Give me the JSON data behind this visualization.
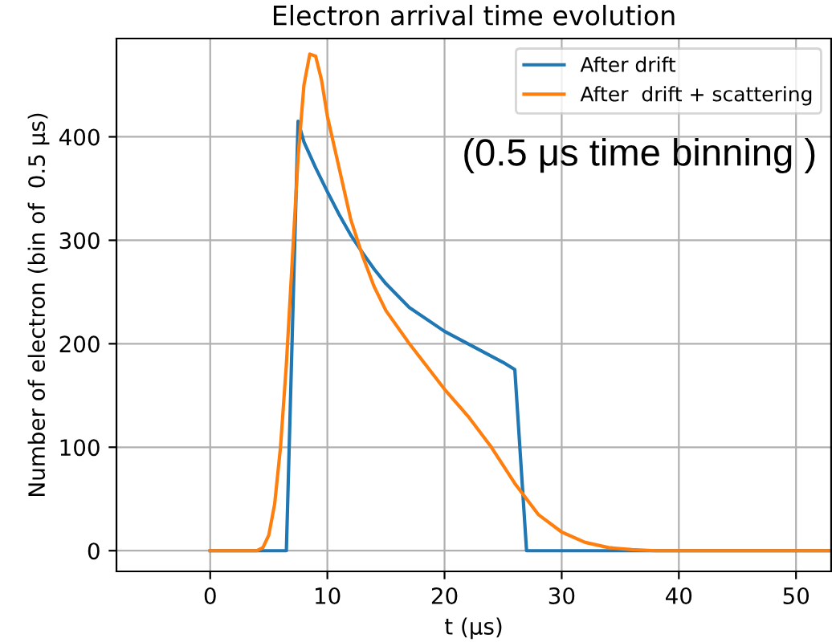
{
  "chart_data": {
    "type": "line",
    "title": "Electron arrival time evolution",
    "xlabel": "t (μs)",
    "ylabel": "Number of electron (bin of  0.5 μs)",
    "annotations": [
      "(0.5 μs time binning )"
    ],
    "xlim": [
      -8,
      53
    ],
    "xticks": [
      0,
      10,
      20,
      30,
      40,
      50
    ],
    "ylim": [
      -20,
      495
    ],
    "yticks": [
      0,
      100,
      200,
      300,
      400
    ],
    "grid": true,
    "legend": "top right",
    "series": [
      {
        "name": "After drift",
        "color": "#1f77b4",
        "x": [
          0,
          6.5,
          7.5,
          8,
          9,
          10,
          11,
          12,
          13,
          14,
          15,
          17,
          20,
          22,
          25,
          26,
          27,
          53
        ],
        "values": [
          0,
          0,
          415,
          395,
          370,
          347,
          325,
          305,
          288,
          272,
          258,
          235,
          212,
          200,
          182,
          175,
          0,
          0
        ]
      },
      {
        "name": "After  drift + scattering",
        "color": "#ff7f0e",
        "x": [
          0,
          4,
          4.5,
          5,
          5.5,
          6,
          6.5,
          7,
          7.5,
          8,
          8.5,
          9,
          9.5,
          10,
          11,
          12,
          13,
          14,
          15,
          17,
          20,
          22,
          24,
          26,
          28,
          30,
          32,
          34,
          36,
          38,
          53
        ],
        "values": [
          0,
          0,
          3,
          15,
          45,
          100,
          180,
          280,
          380,
          450,
          480,
          478,
          455,
          420,
          370,
          320,
          285,
          255,
          232,
          200,
          156,
          130,
          100,
          65,
          35,
          18,
          8,
          3,
          1,
          0,
          0
        ]
      }
    ]
  }
}
